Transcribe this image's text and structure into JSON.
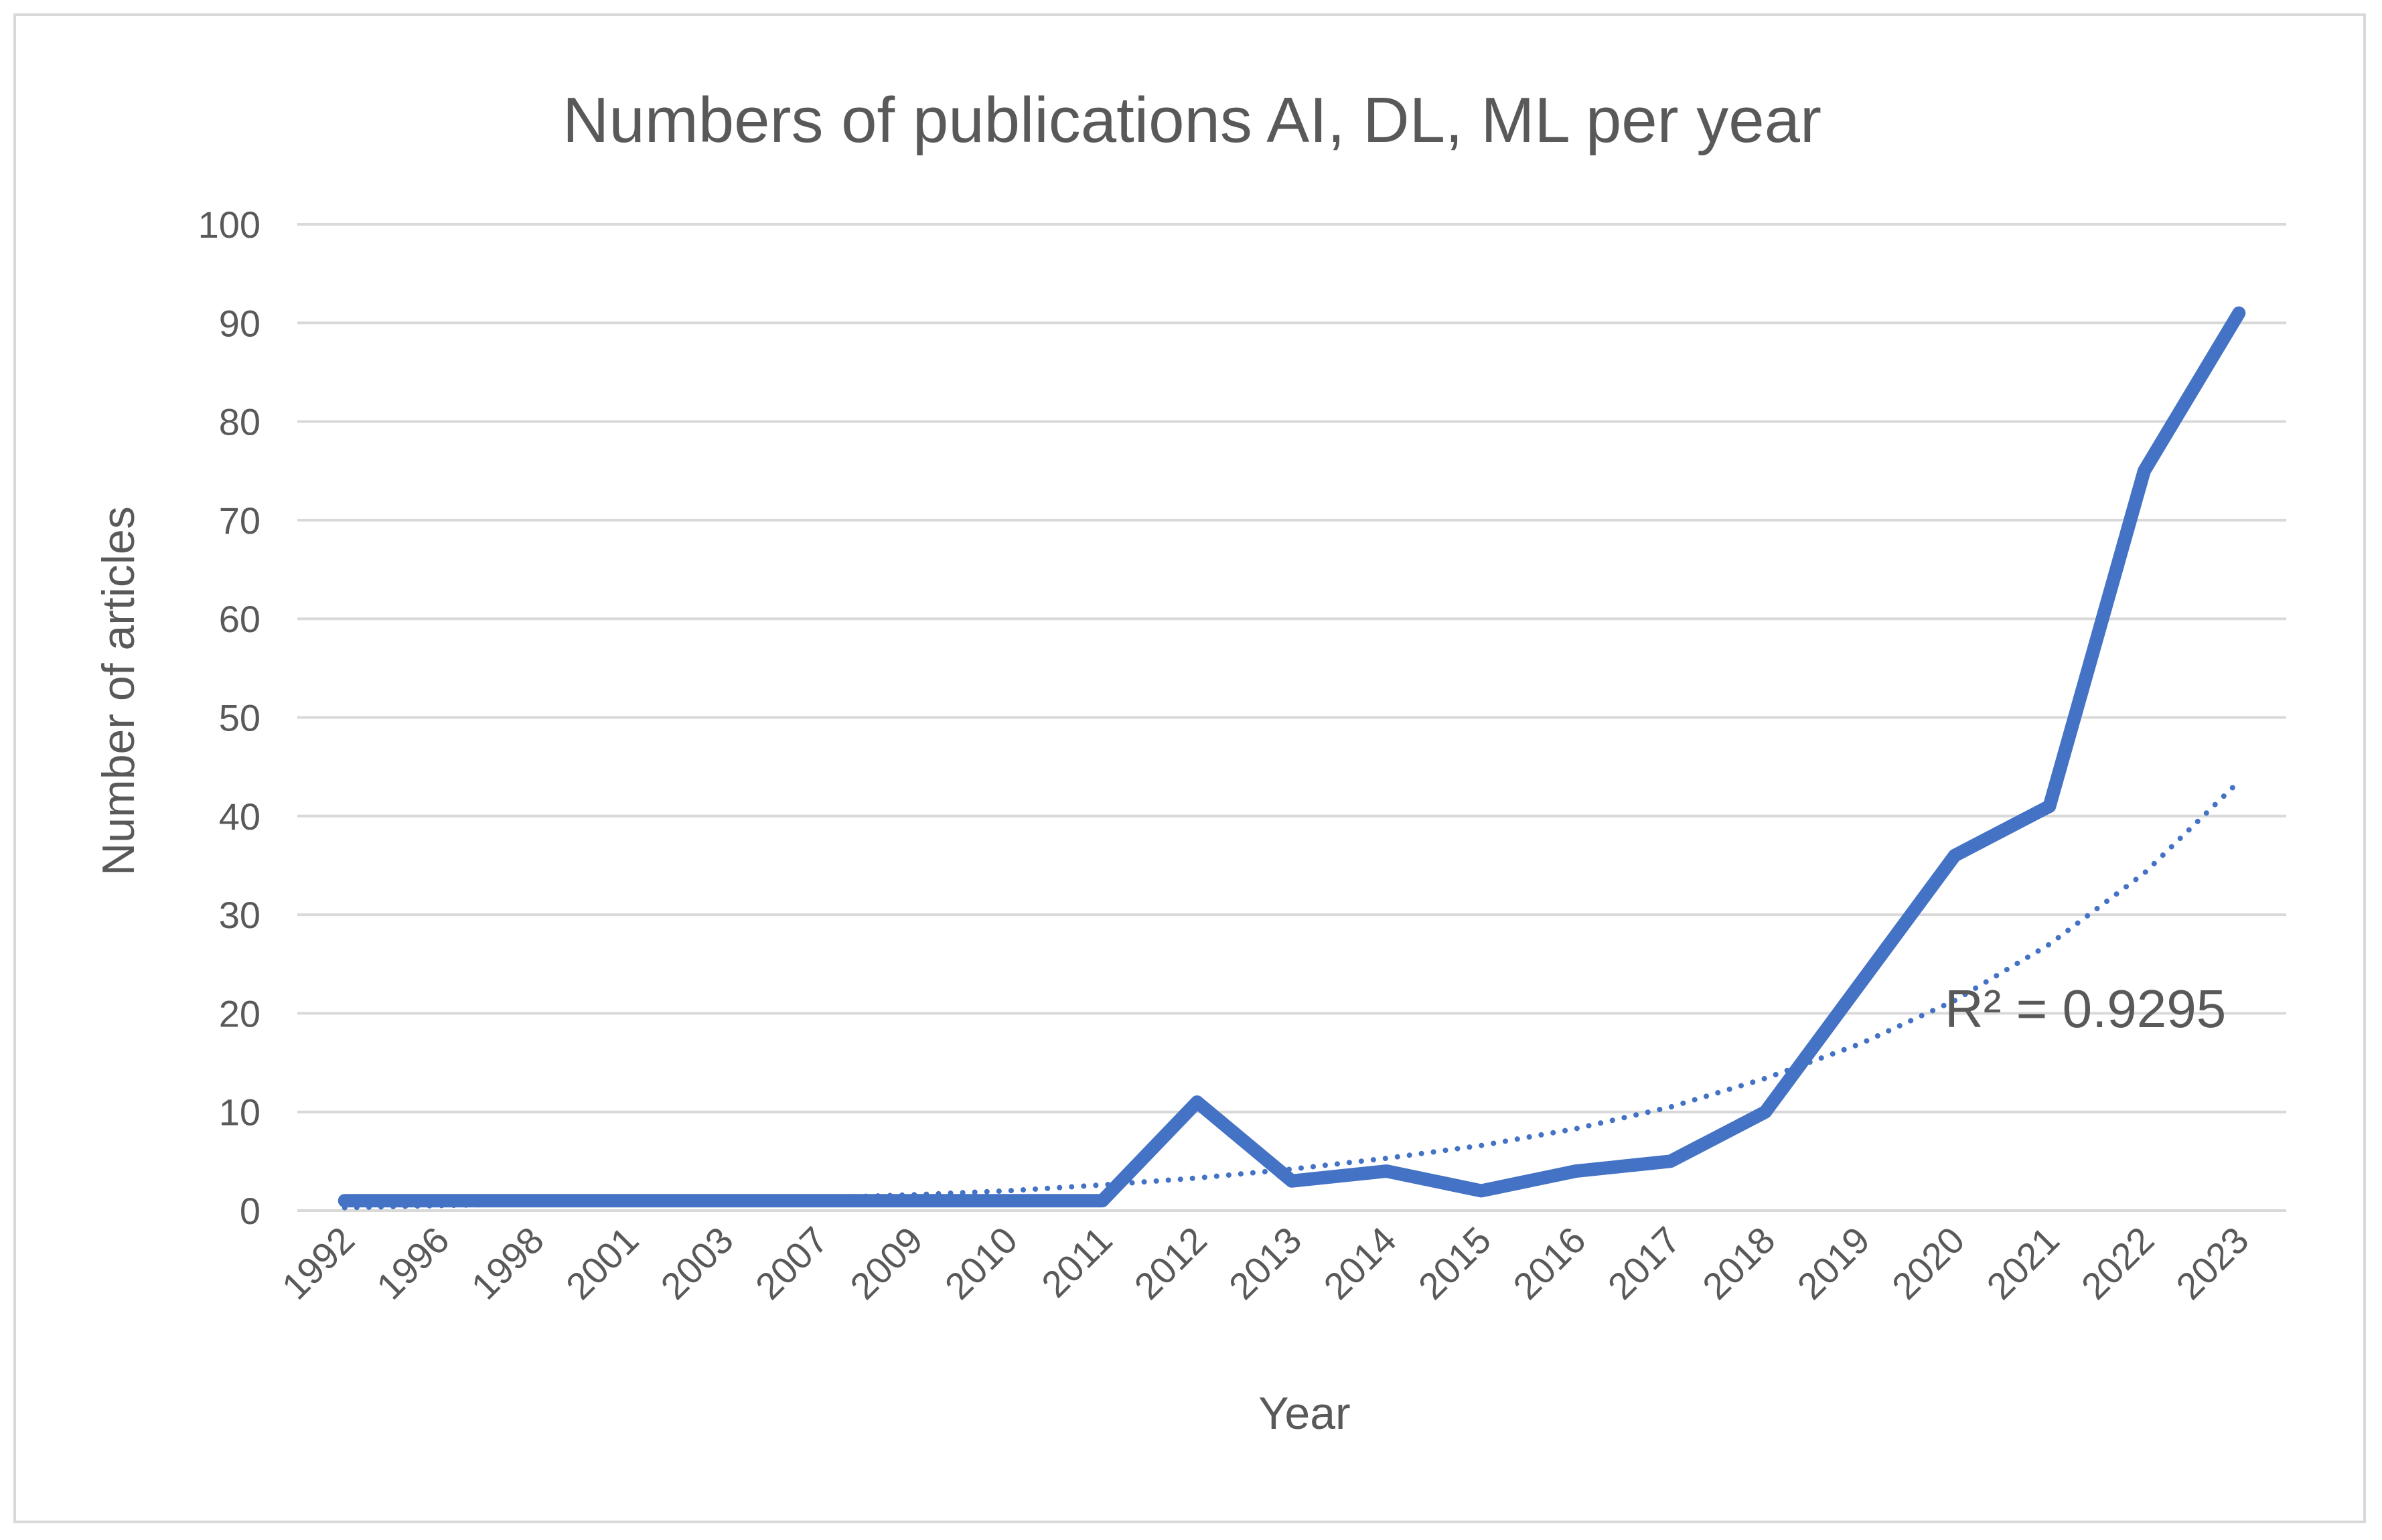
{
  "chart_data": {
    "type": "line",
    "title": "Numbers of publications AI, DL, ML per year",
    "xlabel": "Year",
    "ylabel": "Number of articles",
    "categories": [
      "1992",
      "1996",
      "1998",
      "2001",
      "2003",
      "2007",
      "2009",
      "2010",
      "2011",
      "2012",
      "2013",
      "2014",
      "2015",
      "2016",
      "2017",
      "2018",
      "2019",
      "2020",
      "2021",
      "2022",
      "2023"
    ],
    "series": [
      {
        "values": [
          1,
          1,
          1,
          1,
          1,
          1,
          1,
          1,
          1,
          11,
          3,
          4,
          2,
          4,
          5,
          10,
          23,
          36,
          41,
          75,
          91
        ],
        "color": "#4472c4",
        "style": "solid"
      }
    ],
    "trendline": {
      "values": [
        0.3,
        0.5,
        0.7,
        0.9,
        1.1,
        1.3,
        1.6,
        2.0,
        2.6,
        3.3,
        4.2,
        5.3,
        6.6,
        8.3,
        10.5,
        13.4,
        16.9,
        21.3,
        27.0,
        34.2,
        43.5
      ],
      "color": "#4472c4",
      "style": "dotted",
      "annotation": "R² = 0.9295"
    },
    "yticks": [
      "0",
      "10",
      "20",
      "30",
      "40",
      "50",
      "60",
      "70",
      "80",
      "90",
      "100"
    ],
    "ylim": [
      0,
      100
    ],
    "grid": true,
    "legend": "none"
  }
}
